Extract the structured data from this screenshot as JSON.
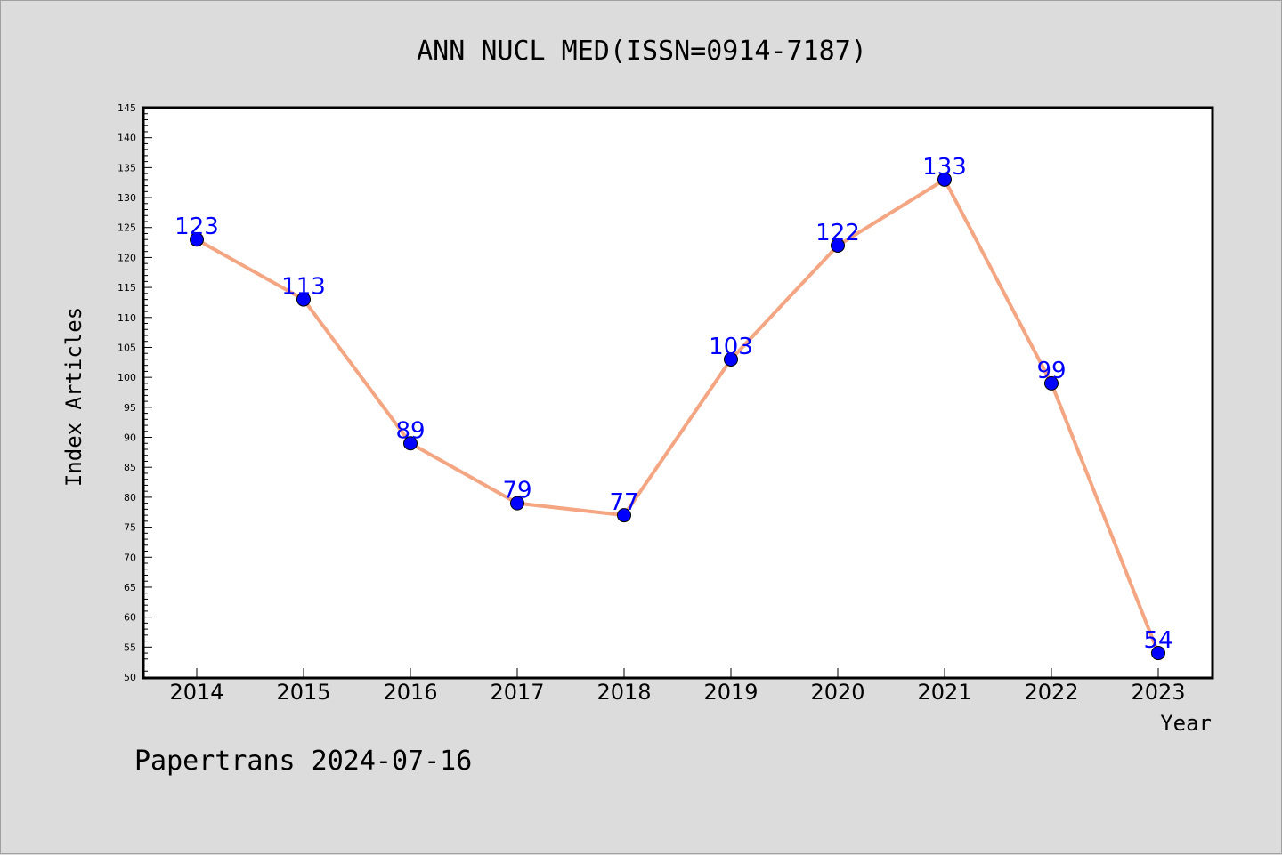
{
  "chart_data": {
    "type": "line",
    "title": "ANN NUCL MED(ISSN=0914-7187)",
    "xlabel": "Year",
    "ylabel": "Index Articles",
    "categories": [
      "2014",
      "2015",
      "2016",
      "2017",
      "2018",
      "2019",
      "2020",
      "2021",
      "2022",
      "2023"
    ],
    "values": [
      123,
      113,
      89,
      79,
      77,
      103,
      122,
      133,
      99,
      54
    ],
    "ylim": [
      50,
      145
    ],
    "ytick_step": 5,
    "grid": false,
    "legend": "none",
    "line_color": "#f4a582",
    "marker_color": "#0000ff",
    "label_color": "#0000ff"
  },
  "footer": "Papertrans 2024-07-16"
}
